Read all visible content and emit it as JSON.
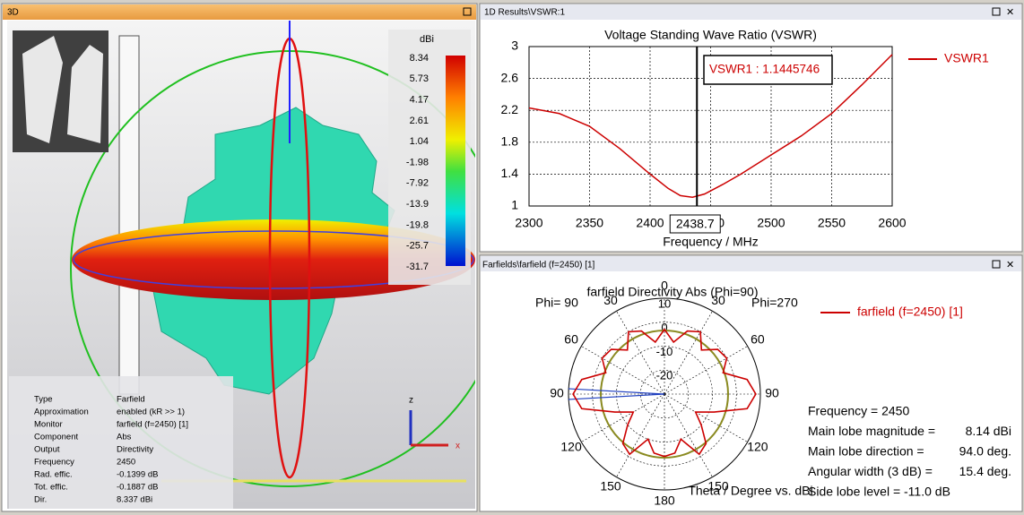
{
  "view3d": {
    "title": "3D",
    "colorbar": {
      "unit": "dBi",
      "ticks": [
        8.34,
        5.73,
        4.17,
        2.61,
        1.04,
        -1.98,
        -7.92,
        -13.9,
        -19.8,
        -25.7,
        -31.7
      ]
    },
    "info": [
      [
        "Type",
        "Farfield"
      ],
      [
        "Approximation",
        "enabled (kR >> 1)"
      ],
      [
        "Monitor",
        "farfield (f=2450) [1]"
      ],
      [
        "Component",
        "Abs"
      ],
      [
        "Output",
        "Directivity"
      ],
      [
        "Frequency",
        "2450"
      ],
      [
        "Rad. effic.",
        "-0.1399 dB"
      ],
      [
        "Tot. effic.",
        "-0.1887 dB"
      ],
      [
        "Dir.",
        "8.337 dBi"
      ]
    ]
  },
  "chart_data": [
    {
      "type": "line",
      "window_title": "1D Results\\VSWR:1",
      "title": "Voltage Standing Wave Ratio (VSWR)",
      "x_label": "Frequency / MHz",
      "x": [
        2300,
        2325,
        2350,
        2375,
        2400,
        2415,
        2425,
        2435,
        2445,
        2460,
        2475,
        2500,
        2525,
        2550,
        2575,
        2600
      ],
      "series": [
        {
          "name": "VSWR1",
          "color": "#cc0000",
          "values": [
            2.23,
            2.16,
            2.0,
            1.72,
            1.4,
            1.22,
            1.13,
            1.11,
            1.15,
            1.27,
            1.4,
            1.64,
            1.88,
            2.16,
            2.52,
            2.9
          ]
        }
      ],
      "xlim": [
        2300,
        2600
      ],
      "xticks": [
        2300,
        2350,
        2400,
        2450,
        2500,
        2550,
        2600
      ],
      "ylim": [
        1,
        3
      ],
      "yticks": [
        1,
        1.4,
        1.8,
        2.2,
        2.6,
        3
      ],
      "grid": true,
      "marker": {
        "x": 2438.7,
        "label": "VSWR1 : 1.1445746"
      }
    },
    {
      "type": "polar",
      "window_title": "Farfields\\farfield (f=2450) [1]",
      "title": "farfield Directivity Abs (Phi=90)",
      "left_label": "Phi= 90",
      "right_label": "Phi=270",
      "axis_label": "Theta / Degree vs. dBi",
      "theta": [
        0,
        10,
        20,
        30,
        40,
        50,
        60,
        70,
        80,
        90,
        100,
        110,
        120,
        130,
        140,
        150,
        160,
        170,
        180,
        190,
        200,
        210,
        220,
        230,
        240,
        250,
        260,
        270,
        280,
        290,
        300,
        310,
        320,
        330,
        340,
        350
      ],
      "series": [
        {
          "name": "farfield (f=2450) [1]",
          "color": "#cc0000",
          "values": [
            -3,
            -8,
            -2,
            0,
            -6,
            -1,
            0,
            -4,
            5,
            8.1,
            5,
            -8,
            -15,
            -10,
            -3,
            -1,
            -10,
            -5,
            -4,
            -5,
            -10,
            -1,
            -3,
            -10,
            -15,
            -8,
            5,
            8.1,
            5,
            -4,
            0,
            -1,
            -6,
            0,
            -2,
            -8
          ]
        }
      ],
      "rlim": [
        -30,
        10
      ],
      "rticks": [
        10,
        0,
        -10,
        -20
      ],
      "grid": true,
      "thetaticks": [
        0,
        30,
        60,
        90,
        120,
        150,
        180,
        {
          "value": 210,
          "label": "150"
        },
        {
          "value": 240,
          "label": "120"
        },
        {
          "value": 270,
          "label": "90"
        },
        {
          "value": 300,
          "label": "60"
        },
        {
          "value": 330,
          "label": "30"
        }
      ],
      "summary": [
        [
          "Frequency = 2450",
          ""
        ],
        [
          "Main lobe magnitude =",
          "8.14 dBi"
        ],
        [
          "Main lobe direction =",
          "94.0 deg."
        ],
        [
          "Angular width (3 dB) =",
          "15.4 deg."
        ],
        [
          "Side lobe level = -11.0 dB",
          ""
        ]
      ]
    }
  ]
}
